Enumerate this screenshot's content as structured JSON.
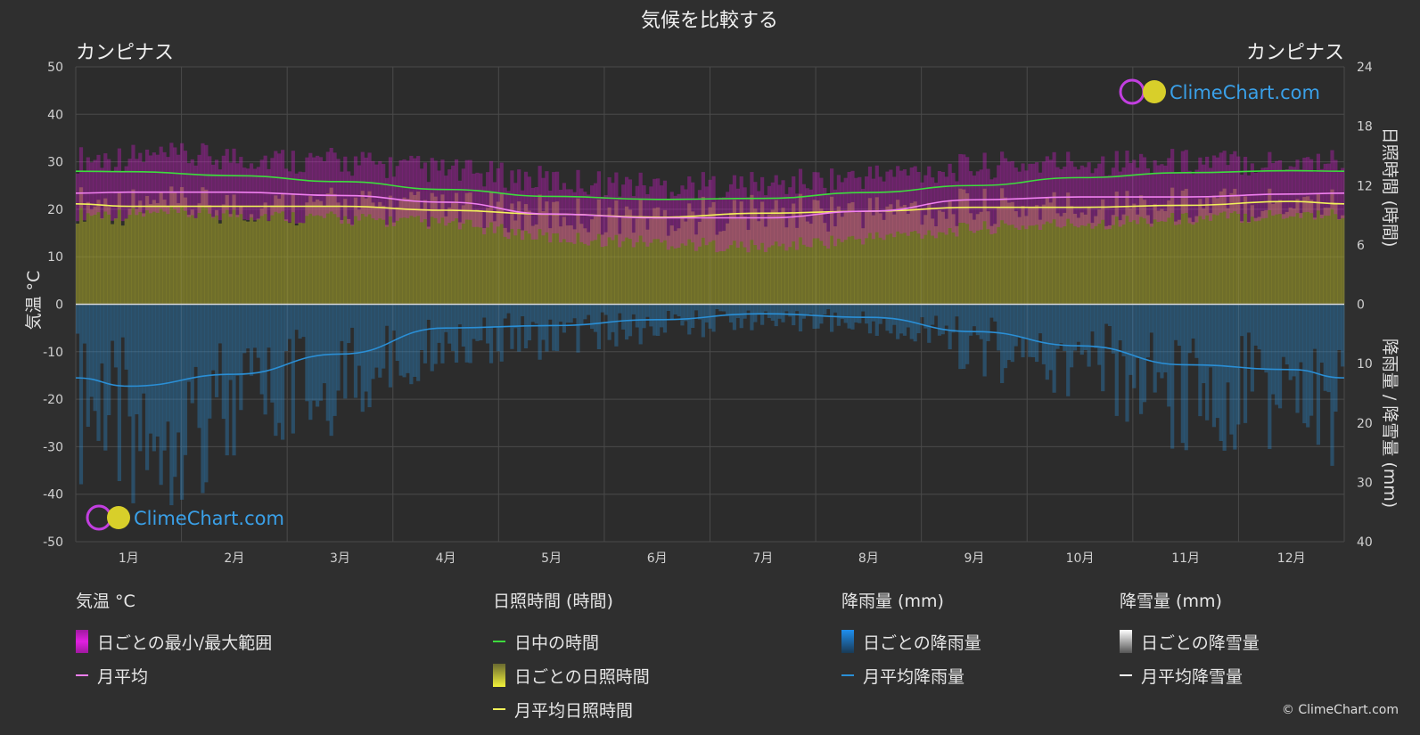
{
  "title": "気候を比較する",
  "location_left": "カンピナス",
  "location_right": "カンピナス",
  "watermark": "ClimeChart.com",
  "copyright": "© ClimeChart.com",
  "axis_left_label": "気温 °C",
  "axis_right_top_label": "日照時間 (時間)",
  "axis_right_bottom_label": "降雨量 / 降雪量 (mm)",
  "colors": {
    "background": "#2f2f2f",
    "temp_range": "#d81bd0",
    "temp_avg": "#f07ff0",
    "daylight": "#3ddc3d",
    "sunshine_fill": "#a7a62a",
    "sunshine_avg": "#f2f25a",
    "rain": "#2a8fd6",
    "snow": "#ffffff"
  },
  "legend": {
    "temperature": {
      "header": "気温 °C",
      "range": "日ごとの最小/最大範囲",
      "avg": "月平均"
    },
    "sunshine": {
      "header": "日照時間 (時間)",
      "daylight": "日中の時間",
      "daily": "日ごとの日照時間",
      "avg": "月平均日照時間"
    },
    "rain": {
      "header": "降雨量 (mm)",
      "daily": "日ごとの降雨量",
      "avg": "月平均降雨量"
    },
    "snow": {
      "header": "降雪量 (mm)",
      "daily": "日ごとの降雪量",
      "avg": "月平均降雪量"
    }
  },
  "chart_data": {
    "type": "line",
    "categories": [
      "1月",
      "2月",
      "3月",
      "4月",
      "5月",
      "6月",
      "7月",
      "8月",
      "9月",
      "10月",
      "11月",
      "12月"
    ],
    "y_left": {
      "ticks": [
        50,
        40,
        30,
        20,
        10,
        0,
        -10,
        -20,
        -30,
        -40,
        -50
      ],
      "ylim": [
        -50,
        50
      ]
    },
    "y_right_top": {
      "ticks": [
        24,
        18,
        12,
        6,
        0
      ],
      "ylim": [
        0,
        24
      ]
    },
    "y_right_bottom": {
      "ticks": [
        0,
        10,
        20,
        30,
        40
      ],
      "ylim": [
        0,
        40
      ]
    },
    "series": [
      {
        "name": "日中の時間",
        "axis": "hours",
        "values": [
          13.4,
          13.0,
          12.4,
          11.6,
          10.9,
          10.6,
          10.7,
          11.3,
          12.0,
          12.8,
          13.3,
          13.5
        ]
      },
      {
        "name": "月平均日照時間",
        "axis": "hours",
        "values": [
          9.9,
          9.9,
          9.9,
          9.5,
          9.1,
          8.8,
          9.2,
          9.4,
          9.8,
          9.8,
          10.0,
          10.4
        ]
      },
      {
        "name": "月平均",
        "axis": "temperature",
        "values": [
          23.6,
          23.6,
          22.9,
          21.5,
          19.0,
          18.2,
          18.2,
          19.6,
          22.0,
          22.6,
          22.6,
          23.2
        ]
      },
      {
        "name": "月平均降雨量",
        "axis": "rain",
        "values": [
          13.8,
          11.8,
          8.4,
          4.0,
          3.6,
          2.6,
          1.6,
          2.2,
          4.6,
          7.0,
          10.2,
          11.0
        ]
      },
      {
        "name": "月平均降雪量",
        "axis": "snow",
        "values": [
          0,
          0,
          0,
          0,
          0,
          0,
          0,
          0,
          0,
          0,
          0,
          0
        ]
      }
    ],
    "temperature_range_max": [
      31,
      31,
      30,
      28,
      26,
      25,
      25,
      27,
      29,
      30,
      30,
      30
    ],
    "temperature_range_min": [
      19,
      19,
      18,
      17,
      14,
      13,
      12,
      14,
      16,
      17,
      18,
      19
    ],
    "grid": true
  }
}
